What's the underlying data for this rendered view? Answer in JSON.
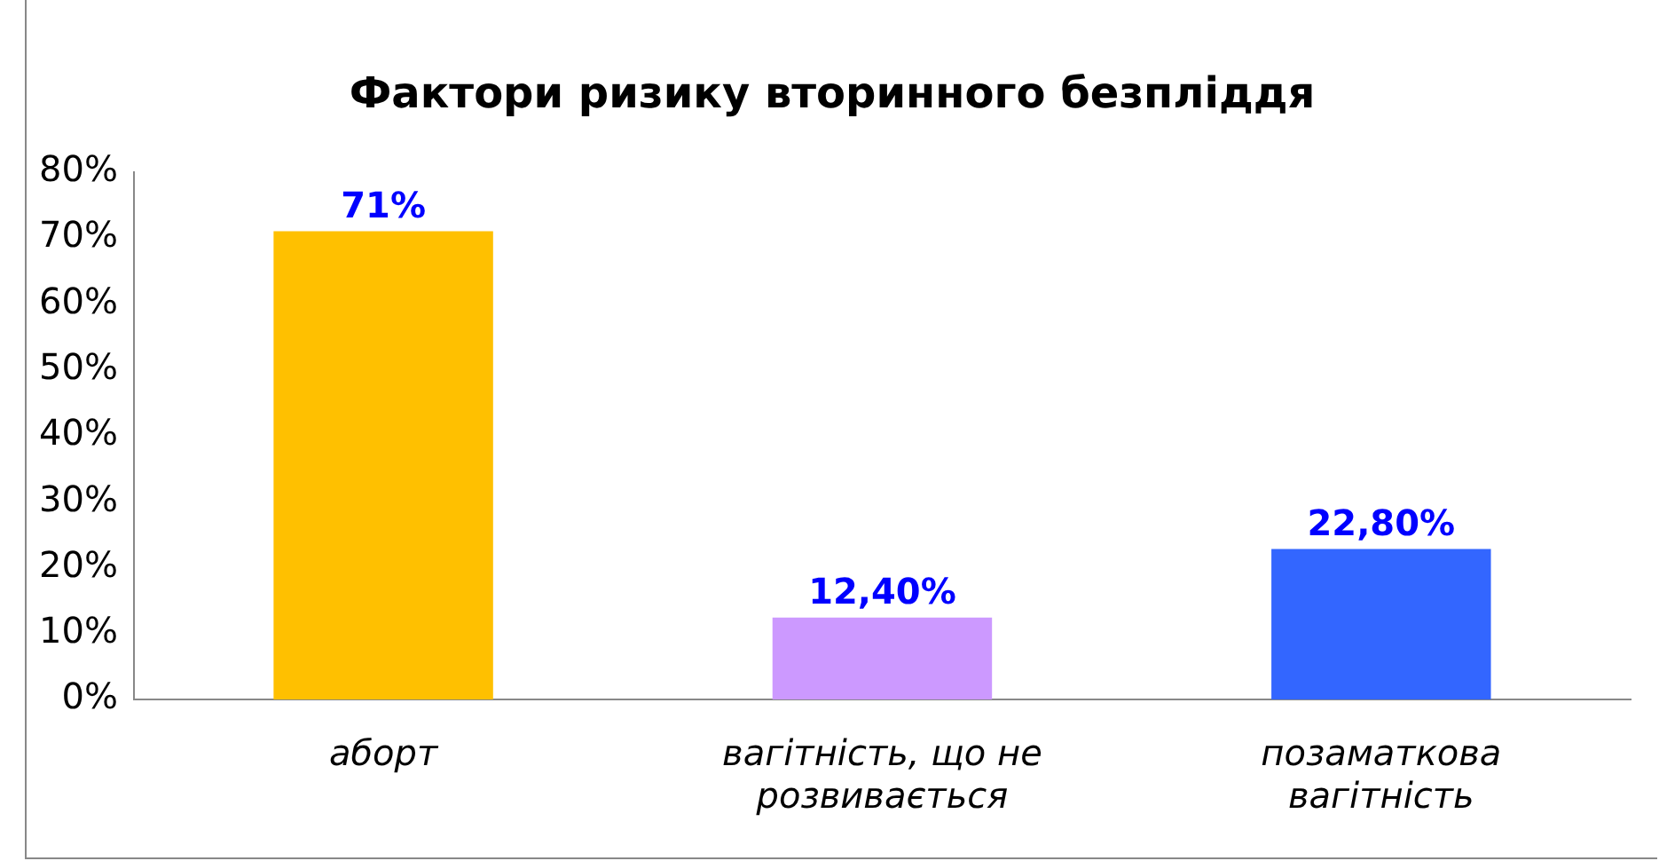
{
  "chart_data": {
    "type": "bar",
    "title": "Фактори ризику вторинного безпліддя",
    "categories": [
      "аборт",
      "вагітність, що не розвивається",
      "позаматкова вагітність"
    ],
    "values": [
      71,
      12.4,
      22.8
    ],
    "colors": [
      "#ffc000",
      "#cc99ff",
      "#3366ff"
    ],
    "value_labels": [
      "71%",
      "12,40%",
      "22,80%"
    ],
    "ylim": [
      0,
      80
    ],
    "yticks": [
      {
        "value": 0,
        "label": "0%"
      },
      {
        "value": 10,
        "label": "10%"
      },
      {
        "value": 20,
        "label": "20%"
      },
      {
        "value": 30,
        "label": "30%"
      },
      {
        "value": 40,
        "label": "40%"
      },
      {
        "value": 50,
        "label": "50%"
      },
      {
        "value": 60,
        "label": "60%"
      },
      {
        "value": 70,
        "label": "70%"
      },
      {
        "value": 80,
        "label": "80%"
      }
    ],
    "grid": false,
    "legend": false
  }
}
